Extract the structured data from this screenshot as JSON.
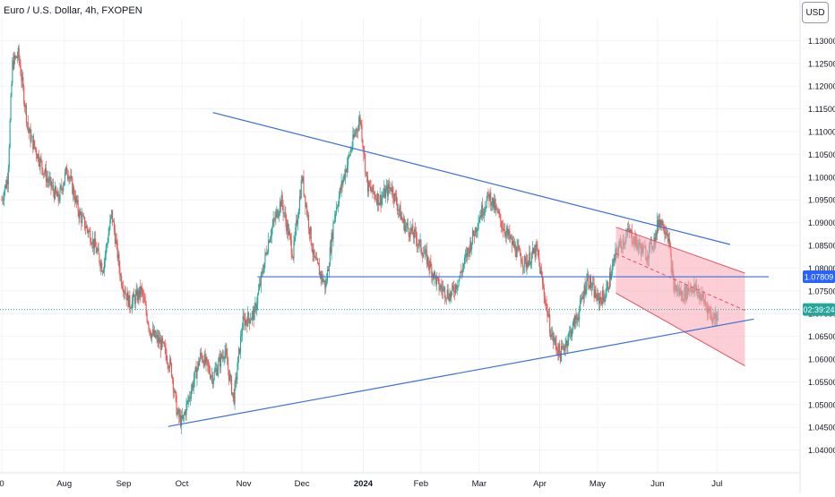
{
  "chart_data": {
    "type": "candlestick",
    "title": "Euro / U.S. Dollar, 4h, FXOPEN",
    "currency_button": "USD",
    "y_axis": {
      "min": 1.035,
      "max": 1.135,
      "ticks": [
        "1.13000",
        "1.12500",
        "1.12000",
        "1.11500",
        "1.11000",
        "1.10500",
        "1.10000",
        "1.09500",
        "1.09000",
        "1.08500",
        "1.08000",
        "1.07500",
        "1.07000",
        "1.06500",
        "1.06000",
        "1.05500",
        "1.05000",
        "1.04500",
        "1.04000"
      ]
    },
    "x_axis": {
      "labels": [
        {
          "label": "0",
          "t": 0
        },
        {
          "label": "Aug",
          "t": 1.05
        },
        {
          "label": "Sep",
          "t": 2.05
        },
        {
          "label": "Oct",
          "t": 3.03
        },
        {
          "label": "Nov",
          "t": 4.07
        },
        {
          "label": "Dec",
          "t": 5.05
        },
        {
          "label": "2024",
          "t": 6.08
        },
        {
          "label": "Feb",
          "t": 7.05
        },
        {
          "label": "Mar",
          "t": 8.03
        },
        {
          "label": "Apr",
          "t": 9.05
        },
        {
          "label": "May",
          "t": 10.02
        },
        {
          "label": "Jun",
          "t": 11.03
        },
        {
          "label": "Jul",
          "t": 12.03
        }
      ],
      "t_range": [
        0,
        12.9
      ]
    },
    "price_path": [
      [
        0.0,
        1.095
      ],
      [
        0.1,
        1.1
      ],
      [
        0.18,
        1.125
      ],
      [
        0.28,
        1.127
      ],
      [
        0.35,
        1.12
      ],
      [
        0.45,
        1.11
      ],
      [
        0.6,
        1.105
      ],
      [
        0.75,
        1.1
      ],
      [
        0.95,
        1.095
      ],
      [
        1.1,
        1.102
      ],
      [
        1.3,
        1.092
      ],
      [
        1.5,
        1.087
      ],
      [
        1.7,
        1.08
      ],
      [
        1.85,
        1.092
      ],
      [
        2.0,
        1.078
      ],
      [
        2.15,
        1.072
      ],
      [
        2.35,
        1.075
      ],
      [
        2.5,
        1.066
      ],
      [
        2.7,
        1.063
      ],
      [
        2.85,
        1.058
      ],
      [
        2.95,
        1.048
      ],
      [
        3.03,
        1.046
      ],
      [
        3.2,
        1.054
      ],
      [
        3.35,
        1.061
      ],
      [
        3.55,
        1.056
      ],
      [
        3.75,
        1.062
      ],
      [
        3.9,
        1.051
      ],
      [
        4.05,
        1.068
      ],
      [
        4.25,
        1.07
      ],
      [
        4.5,
        1.087
      ],
      [
        4.7,
        1.095
      ],
      [
        4.9,
        1.083
      ],
      [
        5.05,
        1.1
      ],
      [
        5.25,
        1.082
      ],
      [
        5.45,
        1.076
      ],
      [
        5.6,
        1.092
      ],
      [
        5.75,
        1.1
      ],
      [
        5.95,
        1.11
      ],
      [
        6.03,
        1.113
      ],
      [
        6.15,
        1.098
      ],
      [
        6.35,
        1.095
      ],
      [
        6.55,
        1.098
      ],
      [
        6.75,
        1.09
      ],
      [
        6.95,
        1.087
      ],
      [
        7.15,
        1.082
      ],
      [
        7.35,
        1.076
      ],
      [
        7.55,
        1.074
      ],
      [
        7.7,
        1.078
      ],
      [
        7.9,
        1.086
      ],
      [
        8.05,
        1.092
      ],
      [
        8.2,
        1.096
      ],
      [
        8.4,
        1.09
      ],
      [
        8.6,
        1.085
      ],
      [
        8.8,
        1.081
      ],
      [
        9.0,
        1.084
      ],
      [
        9.1,
        1.076
      ],
      [
        9.25,
        1.065
      ],
      [
        9.4,
        1.061
      ],
      [
        9.5,
        1.064
      ],
      [
        9.7,
        1.07
      ],
      [
        9.85,
        1.078
      ],
      [
        10.02,
        1.073
      ],
      [
        10.15,
        1.074
      ],
      [
        10.35,
        1.084
      ],
      [
        10.55,
        1.088
      ],
      [
        10.7,
        1.085
      ],
      [
        10.85,
        1.083
      ],
      [
        11.0,
        1.087
      ],
      [
        11.05,
        1.091
      ],
      [
        11.2,
        1.088
      ],
      [
        11.3,
        1.076
      ],
      [
        11.45,
        1.074
      ],
      [
        11.6,
        1.076
      ],
      [
        11.75,
        1.074
      ],
      [
        11.85,
        1.072
      ],
      [
        11.95,
        1.069
      ],
      [
        12.05,
        1.07
      ]
    ],
    "trendlines": [
      {
        "name": "upper-resistance",
        "color": "#3d6fd6",
        "points": [
          [
            3.55,
            1.1142
          ],
          [
            12.25,
            1.0852
          ]
        ]
      },
      {
        "name": "lower-support",
        "color": "#3d6fd6",
        "points": [
          [
            2.8,
            1.0452
          ],
          [
            12.65,
            1.0688
          ]
        ]
      },
      {
        "name": "horizontal-level",
        "color": "#3d6fd6",
        "points": [
          [
            4.3,
            1.0781
          ],
          [
            12.9,
            1.0781
          ]
        ]
      }
    ],
    "channel": {
      "fill": "#f7a8b2",
      "stroke": "#e05262",
      "upper": [
        [
          10.33,
          1.089
        ],
        [
          12.5,
          1.0789
        ]
      ],
      "middle": [
        [
          10.33,
          1.0832
        ],
        [
          12.5,
          1.0707
        ]
      ],
      "lower": [
        [
          10.33,
          1.0745
        ],
        [
          12.5,
          1.0585
        ]
      ]
    },
    "current_price_line": {
      "value": 1.0709,
      "color": "#26a69a"
    },
    "price_labels": [
      {
        "text": "1.07809",
        "value": 1.0781,
        "color": "#2962ff"
      },
      {
        "text": "02:39:24",
        "value": 1.0709,
        "color": "#26a69a"
      }
    ],
    "colors": {
      "up": "#26a69a",
      "down": "#ef5350"
    }
  }
}
